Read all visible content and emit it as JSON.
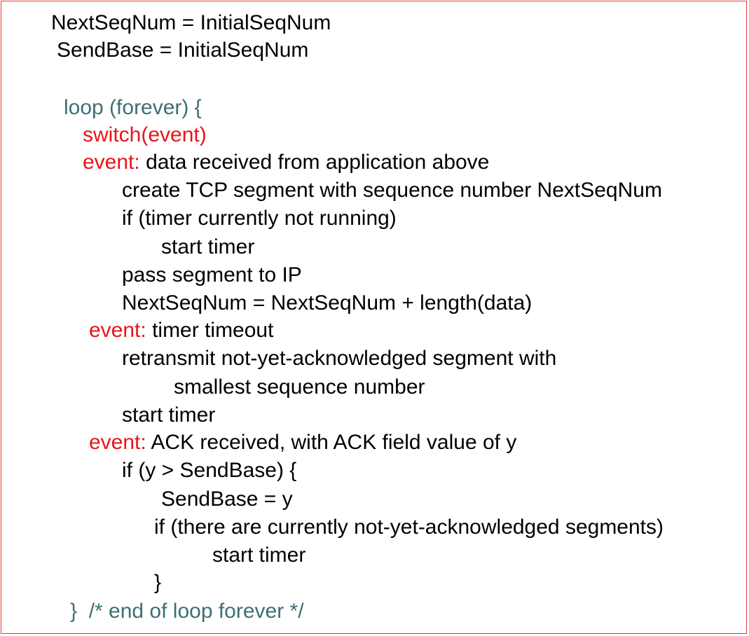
{
  "colors": {
    "border": "#e03a3a",
    "keyword_red": "#e8141b",
    "keyword_teal": "#3d6f74",
    "text": "#000000"
  },
  "code": {
    "l1": "NextSeqNum = InitialSeqNum",
    "l2": "SendBase = InitialSeqNum",
    "loop_open": "loop (forever) {",
    "switch": "switch(event)",
    "event_kw_1": "event:",
    "event_1_text": " data received from application above",
    "create_segment": "create TCP segment with sequence number NextSeqNum",
    "if_timer": "if (timer currently not running)",
    "start_timer_1": "start timer",
    "pass_segment": "pass segment to IP",
    "next_seq_update": "NextSeqNum = NextSeqNum + length(data)",
    "event_kw_2": "event:",
    "event_2_text": " timer timeout",
    "retransmit": "retransmit not-yet-acknowledged segment with",
    "smallest_seq": "smallest sequence number",
    "start_timer_2": "start timer",
    "event_kw_3": "event:",
    "event_3_text": " ACK received, with ACK field value of y",
    "if_y": "if (y > SendBase) {",
    "sendbase_y": "SendBase = y",
    "if_unacked": "if (there are currently not-yet-acknowledged segments)",
    "start_timer_3": "start timer",
    "close_if": "}",
    "loop_close_brace": "}",
    "loop_close_comment": "  /* end of loop forever */"
  }
}
